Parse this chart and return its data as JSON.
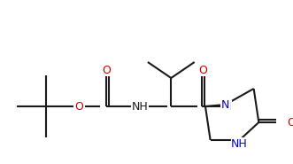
{
  "background_color": "#ffffff",
  "line_color": "#1a1a1a",
  "figsize": [
    3.31,
    1.85
  ],
  "dpi": 100,
  "xlim": [
    0,
    331
  ],
  "ylim": [
    0,
    185
  ]
}
